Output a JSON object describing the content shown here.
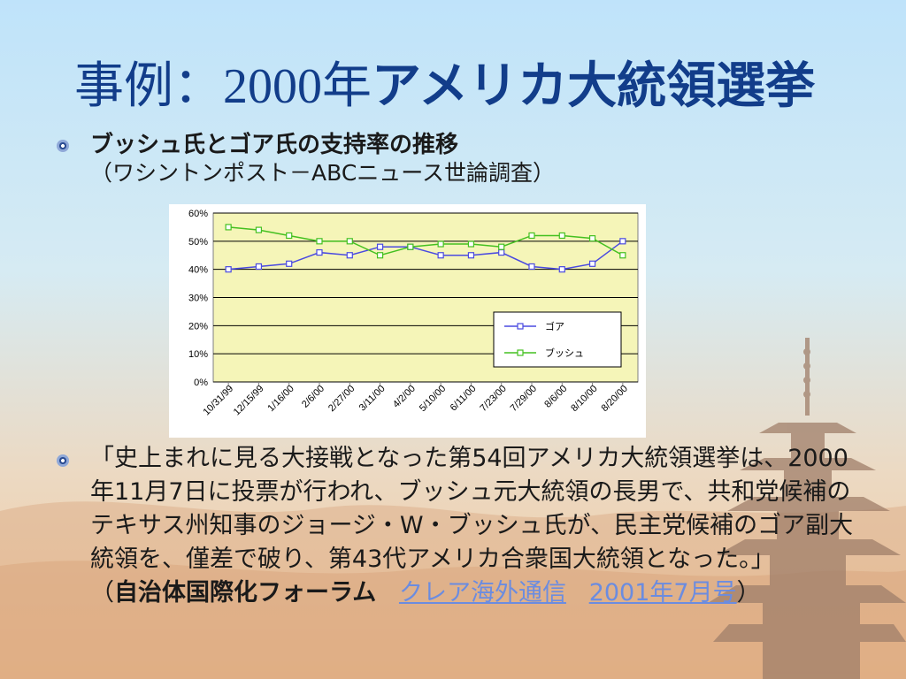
{
  "slide": {
    "title_part1": "事例：",
    "title_year": "2000年",
    "title_part2": "アメリカ大統領選挙",
    "bullet1": {
      "line1": "ブッシュ氏とゴア氏の支持率の推移",
      "line2": "（ワシントンポスト－ABCニュース世論調査）"
    },
    "bullet2": {
      "text": "「史上まれに見る大接戦となった第54回アメリカ大統領選挙は、2000年11月7日に投票が行われ、ブッシュ元大統領の長男で、共和党候補のテキサス州知事のジョージ・W・ブッシュ氏が、民主党候補のゴア副大統領を、僅差で破り、第43代アメリカ合衆国大統領となった。」",
      "source_open": "（",
      "source_name": "自治体国際化フォーラム",
      "link1": "クレア海外通信",
      "link2": "2001年7月号",
      "source_close": "）"
    }
  },
  "chart_data": {
    "type": "line",
    "title": "",
    "xlabel": "",
    "ylabel": "",
    "ylim": [
      0,
      60
    ],
    "yticks": [
      "0%",
      "10%",
      "20%",
      "30%",
      "40%",
      "50%",
      "60%"
    ],
    "grid": true,
    "legend_position": "bottom-right",
    "categories": [
      "10/31/99",
      "12/15/99",
      "1/16/00",
      "2/6/00",
      "2/27/00",
      "3/11/00",
      "4/2/00",
      "5/10/00",
      "6/11/00",
      "7/23/00",
      "7/29/00",
      "8/6/00",
      "8/10/00",
      "8/20/00"
    ],
    "series": [
      {
        "name": "ゴア",
        "color": "#4a4ae0",
        "values": [
          40,
          41,
          42,
          46,
          45,
          48,
          48,
          45,
          45,
          46,
          41,
          40,
          42,
          50
        ]
      },
      {
        "name": "ブッシュ",
        "color": "#44c020",
        "values": [
          55,
          54,
          52,
          50,
          50,
          45,
          48,
          49,
          49,
          48,
          52,
          52,
          51,
          45
        ]
      }
    ],
    "plot_bg": "#f5f5b8"
  }
}
